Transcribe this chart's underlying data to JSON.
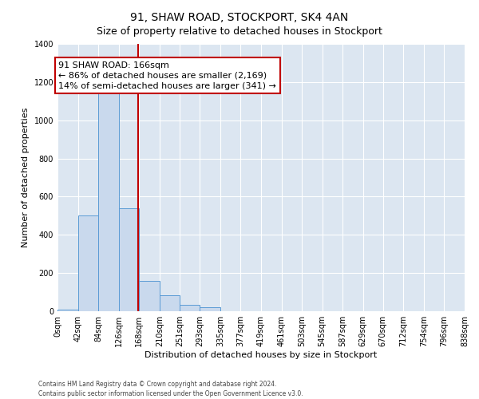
{
  "title": "91, SHAW ROAD, STOCKPORT, SK4 4AN",
  "subtitle": "Size of property relative to detached houses in Stockport",
  "xlabel": "Distribution of detached houses by size in Stockport",
  "ylabel": "Number of detached properties",
  "bin_labels": [
    "0sqm",
    "42sqm",
    "84sqm",
    "126sqm",
    "168sqm",
    "210sqm",
    "251sqm",
    "293sqm",
    "335sqm",
    "377sqm",
    "419sqm",
    "461sqm",
    "503sqm",
    "545sqm",
    "587sqm",
    "629sqm",
    "670sqm",
    "712sqm",
    "754sqm",
    "796sqm",
    "838sqm"
  ],
  "bar_values": [
    10,
    500,
    1150,
    540,
    160,
    85,
    35,
    20,
    0,
    0,
    0,
    0,
    0,
    0,
    0,
    0,
    0,
    0,
    0,
    0
  ],
  "bar_color": "#c9d9ed",
  "bar_edge_color": "#5b9bd5",
  "ylim": [
    0,
    1400
  ],
  "yticks": [
    0,
    200,
    400,
    600,
    800,
    1000,
    1200,
    1400
  ],
  "bin_edges": [
    0,
    42,
    84,
    126,
    168,
    210,
    251,
    293,
    335,
    377,
    419,
    461,
    503,
    545,
    587,
    629,
    670,
    712,
    754,
    796,
    838
  ],
  "vline_x": 166,
  "annotation_title": "91 SHAW ROAD: 166sqm",
  "annotation_line1": "← 86% of detached houses are smaller (2,169)",
  "annotation_line2": "14% of semi-detached houses are larger (341) →",
  "annotation_box_facecolor": "#ffffff",
  "annotation_box_edgecolor": "#c00000",
  "vline_color": "#c00000",
  "fig_facecolor": "#ffffff",
  "plot_facecolor": "#dce6f1",
  "grid_color": "#ffffff",
  "footnote1": "Contains HM Land Registry data © Crown copyright and database right 2024.",
  "footnote2": "Contains public sector information licensed under the Open Government Licence v3.0.",
  "title_fontsize": 10,
  "subtitle_fontsize": 9,
  "axis_label_fontsize": 8,
  "tick_fontsize": 7,
  "annotation_fontsize": 8
}
